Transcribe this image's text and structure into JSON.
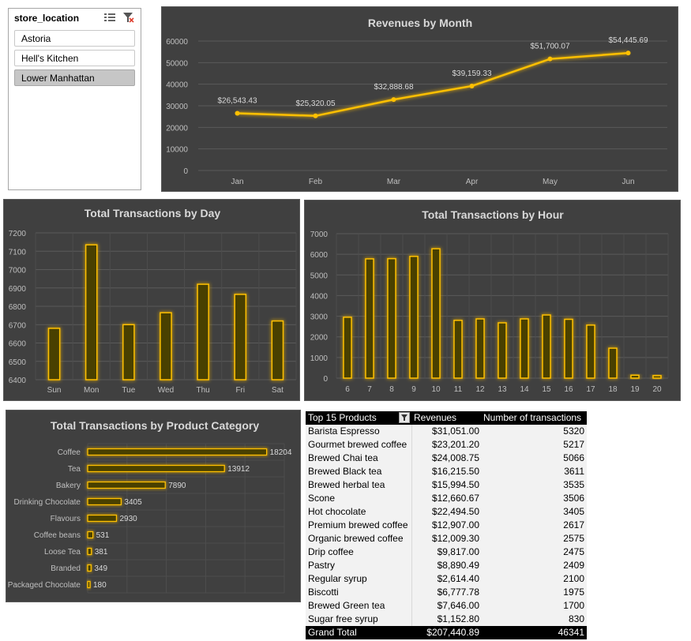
{
  "slicer": {
    "title": "store_location",
    "items": [
      "Astoria",
      "Hell's Kitchen",
      "Lower Manhattan"
    ],
    "selected": "Lower Manhattan",
    "icons": [
      "multi-select-icon",
      "clear-filter-icon"
    ]
  },
  "colors": {
    "panel_bg": "#404040",
    "accent": "#ffc000",
    "text": "#d9d9d9"
  },
  "chart_data": [
    {
      "type": "line",
      "title": "Revenues by Month",
      "categories": [
        "Jan",
        "Feb",
        "Mar",
        "Apr",
        "May",
        "Jun"
      ],
      "values": [
        26543.43,
        25320.05,
        32888.68,
        39159.33,
        51700.07,
        54445.69
      ],
      "data_labels": [
        "$26,543.43",
        "$25,320.05",
        "$32,888.68",
        "$39,159.33",
        "$51,700.07",
        "$54,445.69"
      ],
      "yticks": [
        "0",
        "10000",
        "20000",
        "30000",
        "40000",
        "50000",
        "60000"
      ],
      "ylim": [
        0,
        60000
      ],
      "grid": true
    },
    {
      "type": "bar",
      "title": "Total Transactions by Day",
      "categories": [
        "Sun",
        "Mon",
        "Tue",
        "Wed",
        "Thu",
        "Fri",
        "Sat"
      ],
      "values": [
        6680,
        7135,
        6700,
        6765,
        6920,
        6865,
        6720
      ],
      "yticks": [
        "6400",
        "6500",
        "6600",
        "6700",
        "6800",
        "6900",
        "7000",
        "7100",
        "7200"
      ],
      "ylim": [
        6400,
        7200
      ],
      "grid": true
    },
    {
      "type": "bar",
      "title": "Total Transactions by Hour",
      "categories": [
        "6",
        "7",
        "8",
        "9",
        "10",
        "11",
        "12",
        "13",
        "14",
        "15",
        "16",
        "17",
        "18",
        "19",
        "20"
      ],
      "values": [
        2950,
        5780,
        5790,
        5900,
        6270,
        2800,
        2870,
        2680,
        2870,
        3060,
        2850,
        2570,
        1450,
        140,
        120
      ],
      "yticks": [
        "0",
        "1000",
        "2000",
        "3000",
        "4000",
        "5000",
        "6000",
        "7000"
      ],
      "ylim": [
        0,
        7000
      ],
      "grid": true
    },
    {
      "type": "bar",
      "orientation": "horizontal",
      "title": "Total Transactions by Product Category",
      "categories": [
        "Coffee",
        "Tea",
        "Bakery",
        "Drinking Chocolate",
        "Flavours",
        "Coffee beans",
        "Loose Tea",
        "Branded",
        "Packaged Chocolate"
      ],
      "values": [
        18204,
        13912,
        7890,
        3405,
        2930,
        531,
        381,
        349,
        180
      ],
      "xlim": [
        0,
        20000
      ],
      "grid": true
    }
  ],
  "pivot": {
    "headers": [
      "Top 15 Products",
      "Revenues",
      "Number of transactions"
    ],
    "rows": [
      [
        "Barista Espresso",
        "$31,051.00",
        "5320"
      ],
      [
        "Gourmet brewed coffee",
        "$23,201.20",
        "5217"
      ],
      [
        "Brewed Chai tea",
        "$24,008.75",
        "5066"
      ],
      [
        "Brewed Black tea",
        "$16,215.50",
        "3611"
      ],
      [
        "Brewed herbal tea",
        "$15,994.50",
        "3535"
      ],
      [
        "Scone",
        "$12,660.67",
        "3506"
      ],
      [
        "Hot chocolate",
        "$22,494.50",
        "3405"
      ],
      [
        "Premium brewed coffee",
        "$12,907.00",
        "2617"
      ],
      [
        "Organic brewed coffee",
        "$12,009.30",
        "2575"
      ],
      [
        "Drip coffee",
        "$9,817.00",
        "2475"
      ],
      [
        "Pastry",
        "$8,890.49",
        "2409"
      ],
      [
        "Regular syrup",
        "$2,614.40",
        "2100"
      ],
      [
        "Biscotti",
        "$6,777.78",
        "1975"
      ],
      [
        "Brewed Green tea",
        "$7,646.00",
        "1700"
      ],
      [
        "Sugar free syrup",
        "$1,152.80",
        "830"
      ]
    ],
    "grand_total": [
      "Grand Total",
      "$207,440.89",
      "46341"
    ]
  }
}
